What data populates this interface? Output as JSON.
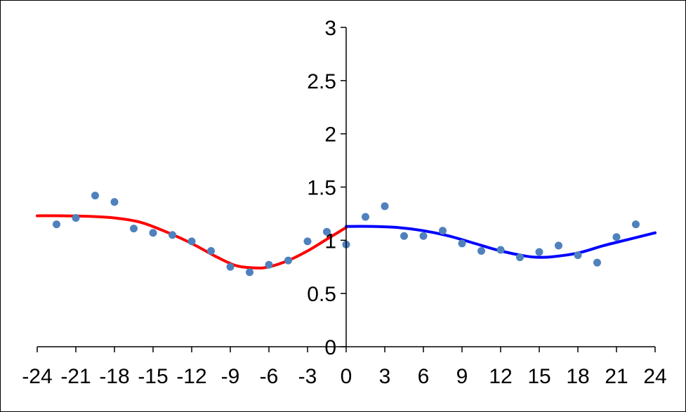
{
  "chart_data": {
    "type": "scatter",
    "xlim": [
      -24,
      24
    ],
    "ylim": [
      0,
      3
    ],
    "x_ticks": [
      -24,
      -21,
      -18,
      -15,
      -12,
      -9,
      -6,
      -3,
      0,
      3,
      6,
      9,
      12,
      15,
      18,
      21,
      24
    ],
    "y_ticks": [
      0,
      0.5,
      1,
      1.5,
      2,
      2.5,
      3
    ],
    "x_tick_labels": [
      "-24",
      "-21",
      "-18",
      "-15",
      "-12",
      "-9",
      "-6",
      "-3",
      "0",
      "3",
      "6",
      "9",
      "12",
      "15",
      "18",
      "21",
      "24"
    ],
    "y_tick_labels": [
      "0",
      "0.5",
      "1",
      "1.5",
      "2",
      "2.5",
      "3"
    ],
    "grid": false,
    "legend": "none",
    "series": [
      {
        "kind": "points",
        "color": "#4f81bd",
        "points": [
          [
            -22.5,
            1.15
          ],
          [
            -21,
            1.21
          ],
          [
            -19.5,
            1.42
          ],
          [
            -18,
            1.36
          ],
          [
            -16.5,
            1.11
          ],
          [
            -15,
            1.07
          ],
          [
            -13.5,
            1.05
          ],
          [
            -12,
            0.99
          ],
          [
            -10.5,
            0.9
          ],
          [
            -9,
            0.75
          ],
          [
            -7.5,
            0.7
          ],
          [
            -6,
            0.77
          ],
          [
            -4.5,
            0.81
          ],
          [
            -3,
            0.99
          ],
          [
            -1.5,
            1.08
          ],
          [
            0,
            0.96
          ],
          [
            1.5,
            1.22
          ],
          [
            3,
            1.32
          ],
          [
            4.5,
            1.04
          ],
          [
            6,
            1.04
          ],
          [
            7.5,
            1.09
          ],
          [
            9,
            0.97
          ],
          [
            10.5,
            0.9
          ],
          [
            12,
            0.91
          ],
          [
            13.5,
            0.84
          ],
          [
            15,
            0.89
          ],
          [
            16.5,
            0.95
          ],
          [
            18,
            0.86
          ],
          [
            19.5,
            0.79
          ],
          [
            21,
            1.03
          ],
          [
            22.5,
            1.15
          ]
        ]
      },
      {
        "kind": "line",
        "color": "#ff0000",
        "points": [
          [
            -24,
            1.23
          ],
          [
            -22,
            1.23
          ],
          [
            -20,
            1.225
          ],
          [
            -18,
            1.21
          ],
          [
            -16,
            1.17
          ],
          [
            -14,
            1.08
          ],
          [
            -12,
            0.97
          ],
          [
            -10,
            0.84
          ],
          [
            -8.5,
            0.76
          ],
          [
            -7,
            0.74
          ],
          [
            -6,
            0.75
          ],
          [
            -4.5,
            0.81
          ],
          [
            -3,
            0.9
          ],
          [
            -1.5,
            1.01
          ],
          [
            0,
            1.12
          ]
        ]
      },
      {
        "kind": "line",
        "color": "#0000ff",
        "points": [
          [
            0,
            1.13
          ],
          [
            2,
            1.13
          ],
          [
            4,
            1.12
          ],
          [
            6,
            1.09
          ],
          [
            8,
            1.04
          ],
          [
            10,
            0.97
          ],
          [
            12,
            0.9
          ],
          [
            14,
            0.85
          ],
          [
            15,
            0.84
          ],
          [
            16,
            0.845
          ],
          [
            18,
            0.88
          ],
          [
            20,
            0.95
          ],
          [
            22,
            1.01
          ],
          [
            24,
            1.07
          ]
        ]
      }
    ]
  }
}
